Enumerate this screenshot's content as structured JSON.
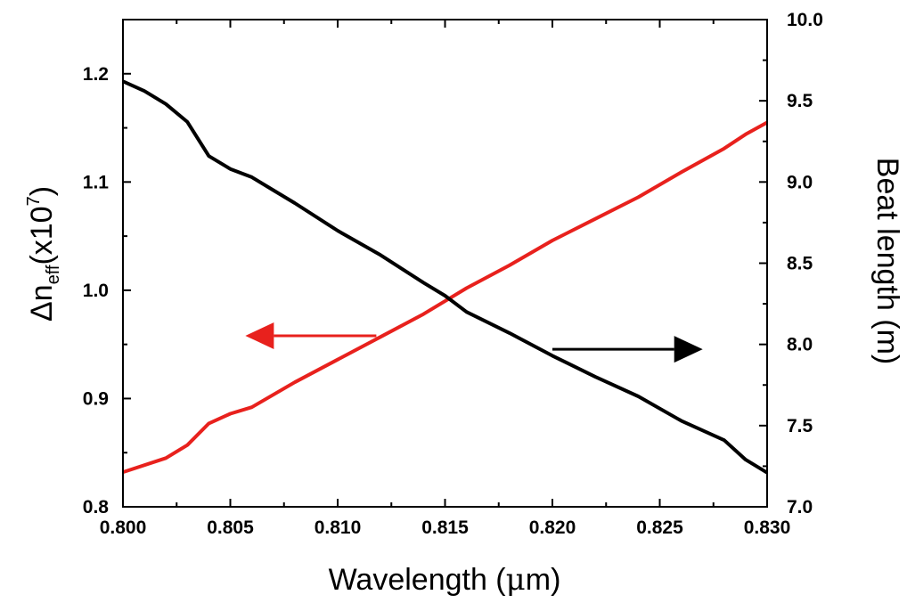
{
  "chart_data": {
    "type": "line",
    "x_axis": {
      "label_main": "Wavelength (",
      "label_mu": "μ",
      "label_tail": "m)",
      "range": [
        0.8,
        0.83
      ],
      "ticks": [
        0.8,
        0.805,
        0.81,
        0.815,
        0.82,
        0.825,
        0.83
      ],
      "tick_labels": [
        "0.800",
        "0.805",
        "0.810",
        "0.815",
        "0.820",
        "0.825",
        "0.830"
      ]
    },
    "y_left": {
      "label_delta": "Δn",
      "label_sub": "eff",
      "label_mid": "(x10",
      "label_sup": "7",
      "label_close": ")",
      "range": [
        0.8,
        1.25
      ],
      "ticks": [
        0.8,
        0.9,
        1.0,
        1.1,
        1.2
      ],
      "tick_labels": [
        "0.8",
        "0.9",
        "1.0",
        "1.1",
        "1.2"
      ]
    },
    "y_right": {
      "label": "Beat length (m)",
      "range": [
        7.0,
        10.0
      ],
      "ticks": [
        7.0,
        7.5,
        8.0,
        8.5,
        9.0,
        9.5,
        10.0
      ],
      "tick_labels": [
        "7.0",
        "7.5",
        "8.0",
        "8.5",
        "9.0",
        "9.5",
        "10.0"
      ]
    },
    "series": [
      {
        "axis": "left",
        "color": "#e8211d",
        "x": [
          0.8,
          0.802,
          0.803,
          0.804,
          0.805,
          0.806,
          0.808,
          0.81,
          0.812,
          0.814,
          0.816,
          0.818,
          0.82,
          0.822,
          0.824,
          0.826,
          0.828,
          0.829,
          0.83
        ],
        "y": [
          0.832,
          0.845,
          0.857,
          0.877,
          0.886,
          0.892,
          0.915,
          0.936,
          0.957,
          0.978,
          1.002,
          1.023,
          1.046,
          1.066,
          1.086,
          1.109,
          1.131,
          1.144,
          1.155
        ]
      },
      {
        "axis": "right",
        "color": "#000000",
        "x": [
          0.8,
          0.801,
          0.802,
          0.803,
          0.804,
          0.805,
          0.806,
          0.807,
          0.808,
          0.81,
          0.812,
          0.814,
          0.815,
          0.816,
          0.818,
          0.82,
          0.822,
          0.824,
          0.826,
          0.828,
          0.829,
          0.83
        ],
        "y": [
          9.62,
          9.56,
          9.48,
          9.37,
          9.16,
          9.08,
          9.03,
          8.95,
          8.87,
          8.7,
          8.55,
          8.38,
          8.3,
          8.2,
          8.07,
          7.93,
          7.8,
          7.68,
          7.53,
          7.41,
          7.29,
          7.21
        ]
      }
    ],
    "annotations": [
      {
        "type": "arrow",
        "direction": "left",
        "color": "#e8211d",
        "series": "left",
        "x_from": 0.8118,
        "x_to": 0.8057,
        "y_left": 0.958
      },
      {
        "type": "arrow",
        "direction": "right",
        "color": "#000000",
        "series": "right",
        "x_from": 0.82,
        "x_to": 0.827,
        "y_right": 7.97
      }
    ],
    "grid": false,
    "legend": "none"
  }
}
